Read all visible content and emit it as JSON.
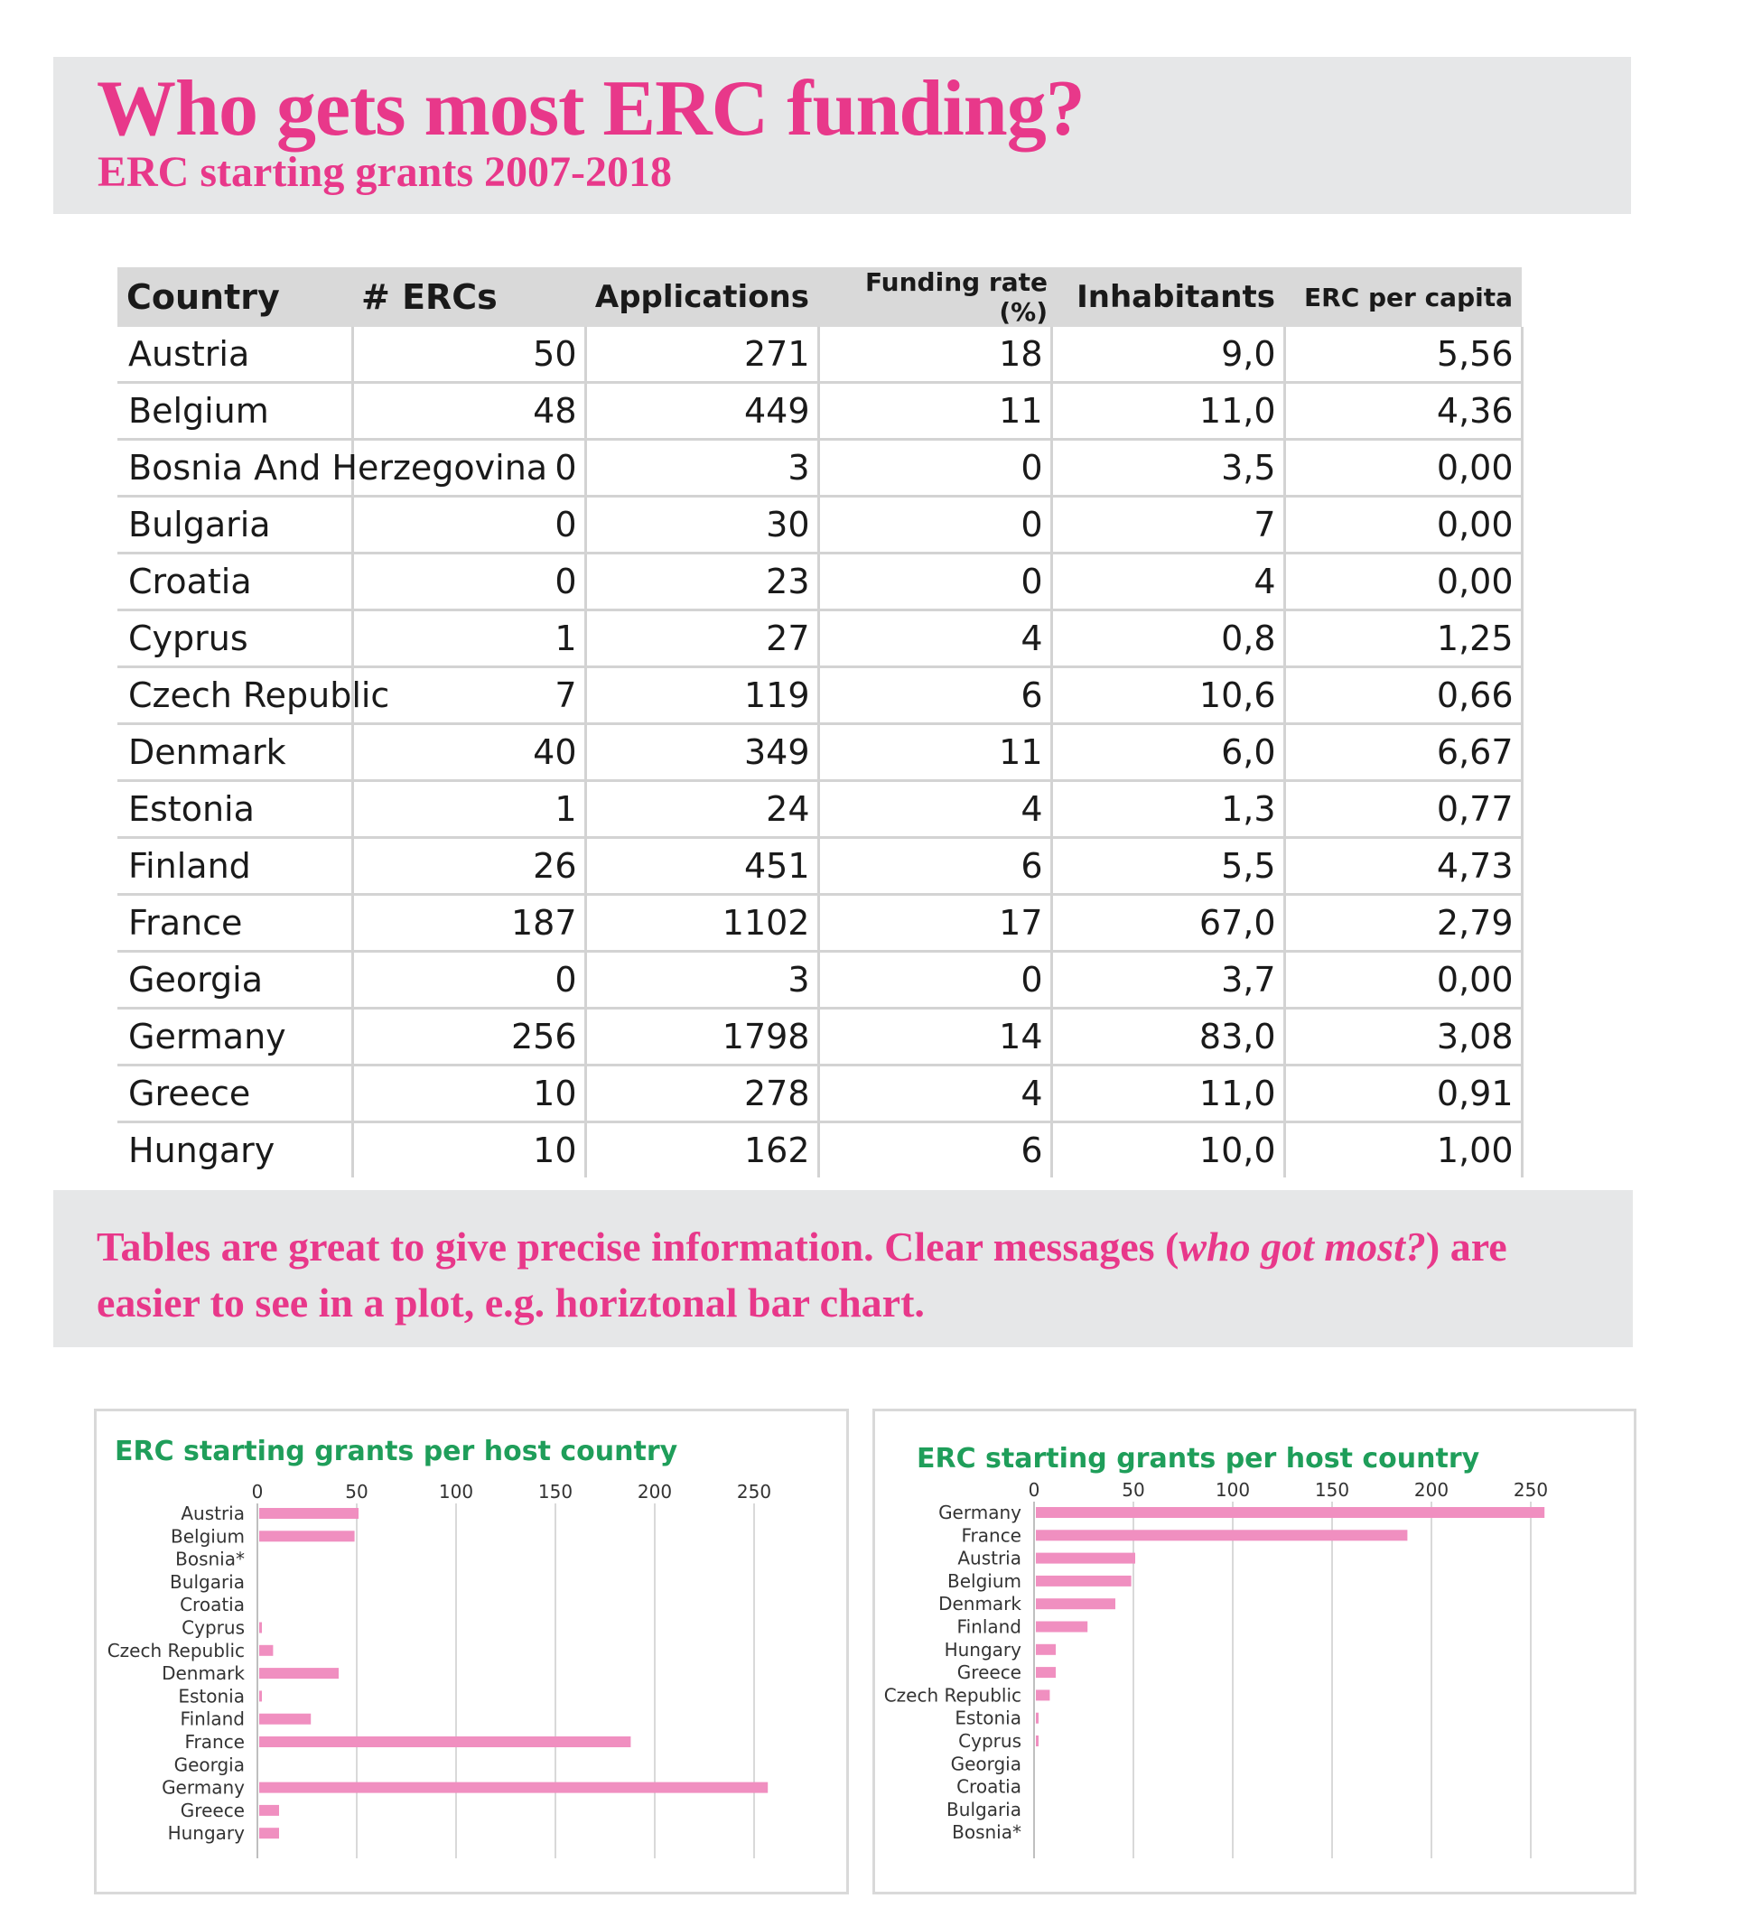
{
  "header": {
    "title": "Who gets most ERC funding?",
    "subtitle": "ERC starting grants 2007-2018"
  },
  "table": {
    "columns": [
      "Country",
      "# ERCs",
      "Applications",
      "Funding rate (%)",
      "Inhabitants",
      "ERC per capita"
    ],
    "rows": [
      [
        "Austria",
        "50",
        "271",
        "18",
        "9,0",
        "5,56"
      ],
      [
        "Belgium",
        "48",
        "449",
        "11",
        "11,0",
        "4,36"
      ],
      [
        "Bosnia And Herzegovina",
        "0",
        "3",
        "0",
        "3,5",
        "0,00"
      ],
      [
        "Bulgaria",
        "0",
        "30",
        "0",
        "7",
        "0,00"
      ],
      [
        "Croatia",
        "0",
        "23",
        "0",
        "4",
        "0,00"
      ],
      [
        "Cyprus",
        "1",
        "27",
        "4",
        "0,8",
        "1,25"
      ],
      [
        "Czech Republic",
        "7",
        "119",
        "6",
        "10,6",
        "0,66"
      ],
      [
        "Denmark",
        "40",
        "349",
        "11",
        "6,0",
        "6,67"
      ],
      [
        "Estonia",
        "1",
        "24",
        "4",
        "1,3",
        "0,77"
      ],
      [
        "Finland",
        "26",
        "451",
        "6",
        "5,5",
        "4,73"
      ],
      [
        "France",
        "187",
        "1102",
        "17",
        "67,0",
        "2,79"
      ],
      [
        "Georgia",
        "0",
        "3",
        "0",
        "3,7",
        "0,00"
      ],
      [
        "Germany",
        "256",
        "1798",
        "14",
        "83,0",
        "3,08"
      ],
      [
        "Greece",
        "10",
        "278",
        "4",
        "11,0",
        "0,91"
      ],
      [
        "Hungary",
        "10",
        "162",
        "6",
        "10,0",
        "1,00"
      ]
    ]
  },
  "message": {
    "part1": "Tables are great to give precise information. Clear messages (",
    "emphasis": "who got most?",
    "part2": ") are easier to see in a plot, e.g. horiztonal bar chart."
  },
  "colors": {
    "accent": "#e8388a",
    "bar": "#f08fc0",
    "chart_title": "#1f9e5a",
    "banner": "#e6e7e8",
    "grid": "#d9d9d9"
  },
  "chart_data": [
    {
      "type": "bar",
      "orientation": "horizontal",
      "title": "ERC starting grants per host country",
      "categories": [
        "Austria",
        "Belgium",
        "Bosnia*",
        "Bulgaria",
        "Croatia",
        "Cyprus",
        "Czech Republic",
        "Denmark",
        "Estonia",
        "Finland",
        "France",
        "Georgia",
        "Germany",
        "Greece",
        "Hungary"
      ],
      "values": [
        50,
        48,
        0,
        0,
        0,
        1,
        7,
        40,
        1,
        26,
        187,
        0,
        256,
        10,
        10
      ],
      "ticks": [
        0,
        50,
        100,
        150,
        200,
        250
      ],
      "xlim": [
        0,
        270
      ],
      "grid": true,
      "axis_position": "top"
    },
    {
      "type": "bar",
      "orientation": "horizontal",
      "title": "ERC starting grants per host country",
      "categories": [
        "Germany",
        "France",
        "Austria",
        "Belgium",
        "Denmark",
        "Finland",
        "Hungary",
        "Greece",
        "Czech Republic",
        "Estonia",
        "Cyprus",
        "Georgia",
        "Croatia",
        "Bulgaria",
        "Bosnia*"
      ],
      "values": [
        256,
        187,
        50,
        48,
        40,
        26,
        10,
        10,
        7,
        1,
        1,
        0,
        0,
        0,
        0
      ],
      "ticks": [
        0,
        50,
        100,
        150,
        200,
        250
      ],
      "xlim": [
        0,
        270
      ],
      "grid": true,
      "axis_position": "top"
    }
  ]
}
